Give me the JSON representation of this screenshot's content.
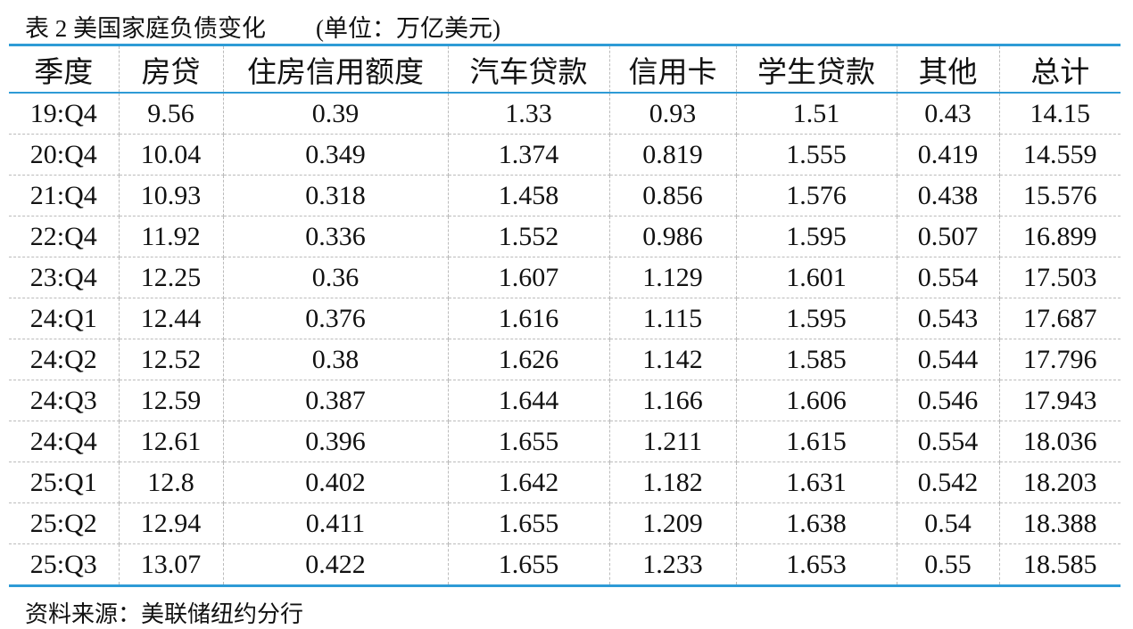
{
  "title": "表 2 美国家庭负债变化",
  "unit": "(单位：万亿美元)",
  "table": {
    "columns": [
      "季度",
      "房贷",
      "住房信用额度",
      "汽车贷款",
      "信用卡",
      "学生贷款",
      "其他",
      "总计"
    ],
    "rows": [
      [
        "19:Q4",
        9.56,
        0.39,
        1.33,
        0.93,
        1.51,
        0.43,
        14.15
      ],
      [
        "20:Q4",
        10.04,
        0.349,
        1.374,
        0.819,
        1.555,
        0.419,
        14.559
      ],
      [
        "21:Q4",
        10.93,
        0.318,
        1.458,
        0.856,
        1.576,
        0.438,
        15.576
      ],
      [
        "22:Q4",
        11.92,
        0.336,
        1.552,
        0.986,
        1.595,
        0.507,
        16.899
      ],
      [
        "23:Q4",
        12.25,
        0.36,
        1.607,
        1.129,
        1.601,
        0.554,
        17.503
      ],
      [
        "24:Q1",
        12.44,
        0.376,
        1.616,
        1.115,
        1.595,
        0.543,
        17.687
      ],
      [
        "24:Q2",
        12.52,
        0.38,
        1.626,
        1.142,
        1.585,
        0.544,
        17.796
      ],
      [
        "24:Q3",
        12.59,
        0.387,
        1.644,
        1.166,
        1.606,
        0.546,
        17.943
      ],
      [
        "24:Q4",
        12.61,
        0.396,
        1.655,
        1.211,
        1.615,
        0.554,
        18.036
      ],
      [
        "25:Q1",
        12.8,
        0.402,
        1.642,
        1.182,
        1.631,
        0.542,
        18.203
      ],
      [
        "25:Q2",
        12.94,
        0.411,
        1.655,
        1.209,
        1.638,
        0.54,
        18.388
      ],
      [
        "25:Q3",
        13.07,
        0.422,
        1.655,
        1.233,
        1.653,
        0.55,
        18.585
      ]
    ]
  },
  "source": "资料来源：美联储纽约分行"
}
